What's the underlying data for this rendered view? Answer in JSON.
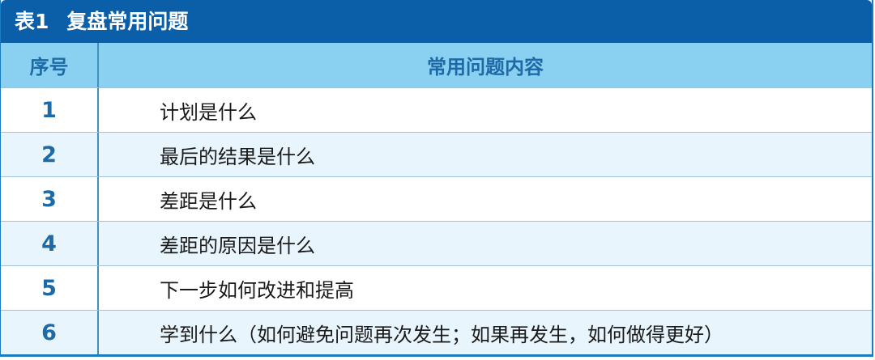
{
  "table": {
    "title_label": "表1",
    "title_text": "复盘常用问题",
    "headers": [
      "序号",
      "常用问题内容"
    ],
    "rows": [
      {
        "num": "1",
        "text": "计划是什么"
      },
      {
        "num": "2",
        "text": "最后的结果是什么"
      },
      {
        "num": "3",
        "text": "差距是什么"
      },
      {
        "num": "4",
        "text": "差距的原因是什么"
      },
      {
        "num": "5",
        "text": "下一步如何改进和提高"
      },
      {
        "num": "6",
        "text": "学到什么（如何避免问题再次发生；如果再发生，如何做得更好）"
      }
    ]
  },
  "colors": {
    "title_bg": "#0b5ea8",
    "header_bg": "#8ad0f1",
    "alt_row_bg": "#e8f5fc",
    "number_text": "#1d6aa6"
  }
}
